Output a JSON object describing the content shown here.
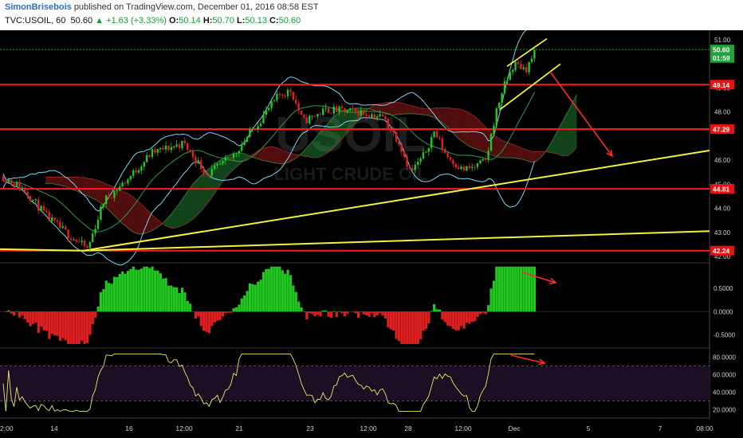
{
  "header": {
    "author": "SimonBrisebois",
    "published": "published on TradingView.com, December 01, 2016 08:58 EST",
    "symbol": "TVC:USOIL, 60",
    "last": "50.60",
    "change": "▲ +1.63 (+3.33%)",
    "o_label": "O:",
    "o": "50.14",
    "h_label": "H:",
    "h": "50.70",
    "l_label": "L:",
    "l": "50.13",
    "c_label": "C:",
    "c": "50.60"
  },
  "watermark": {
    "symbol": "USOIL",
    "name": "LIGHT CRUDE OIL"
  },
  "chart_data": [
    {
      "type": "candlestick",
      "panel": "price",
      "ylim": [
        41.8,
        51.4
      ],
      "x_ticks": [
        "2:00",
        "14",
        "16",
        "12:00",
        "21",
        "23",
        "12:00",
        "28",
        "12:00",
        "Dec",
        "5",
        "7",
        "08:00"
      ],
      "y_ticks": [
        "51.00",
        "49.00",
        "48.00",
        "46.00",
        "45.00",
        "44.00",
        "43.00",
        "42.00"
      ],
      "close_path": [
        [
          0,
          45.4
        ],
        [
          30,
          44.8
        ],
        [
          60,
          43.6
        ],
        [
          90,
          42.8
        ],
        [
          110,
          42.3
        ],
        [
          130,
          44.3
        ],
        [
          160,
          45.2
        ],
        [
          190,
          46.3
        ],
        [
          230,
          46.7
        ],
        [
          260,
          45.4
        ],
        [
          290,
          46.1
        ],
        [
          320,
          47.4
        ],
        [
          350,
          48.7
        ],
        [
          365,
          48.9
        ],
        [
          380,
          47.6
        ],
        [
          410,
          48.1
        ],
        [
          450,
          48.0
        ],
        [
          480,
          47.8
        ],
        [
          500,
          46.8
        ],
        [
          515,
          45.5
        ],
        [
          530,
          46.1
        ],
        [
          545,
          47.2
        ],
        [
          560,
          46.2
        ],
        [
          580,
          45.6
        ],
        [
          595,
          45.7
        ],
        [
          610,
          46.0
        ],
        [
          620,
          47.7
        ],
        [
          630,
          48.9
        ],
        [
          645,
          50.0
        ],
        [
          660,
          49.8
        ],
        [
          673,
          50.6
        ]
      ],
      "price_labels": [
        {
          "text": "50.60",
          "value": 50.6,
          "color": "#1fa33a"
        },
        {
          "text": "01:59",
          "value": 50.25,
          "color": "#1fa33a"
        },
        {
          "text": "49.14",
          "value": 49.14,
          "color": "#ee1111"
        },
        {
          "text": "47.29",
          "value": 47.29,
          "color": "#ee1111"
        },
        {
          "text": "44.81",
          "value": 44.81,
          "color": "#ee1111"
        },
        {
          "text": "42.24",
          "value": 42.24,
          "color": "#ee1111"
        }
      ],
      "horizontal_levels": [
        49.14,
        47.29,
        44.81,
        42.24
      ],
      "trendlines": [
        {
          "from": [
            105,
            42.24
          ],
          "to": [
            890,
            46.4
          ],
          "color": "#f2f23a"
        },
        {
          "from": [
            105,
            42.24
          ],
          "to": [
            890,
            43.05
          ],
          "color": "#f2f23a"
        },
        {
          "from": [
            0,
            42.3
          ],
          "to": [
            105,
            42.24
          ],
          "color": "#f2f23a"
        }
      ]
    },
    {
      "type": "bar",
      "panel": "histogram",
      "ylim": [
        -0.75,
        1.0
      ],
      "y_ticks": [
        "0.5000",
        "0.0000",
        "-0.5000"
      ]
    },
    {
      "type": "line",
      "panel": "rsi",
      "ylim": [
        12,
        88
      ],
      "y_ticks": [
        "80.0000",
        "60.0000",
        "40.0000",
        "20.0000"
      ],
      "bands": [
        70,
        30
      ]
    }
  ],
  "colors": {
    "bull": "#22c722",
    "bear": "#e02020",
    "level": "#ff1a1a",
    "trend": "#f2f23a",
    "bollinger": "#7fd3f0",
    "rsi": "#e8e86a",
    "axis_text": "#cfcfcf"
  }
}
